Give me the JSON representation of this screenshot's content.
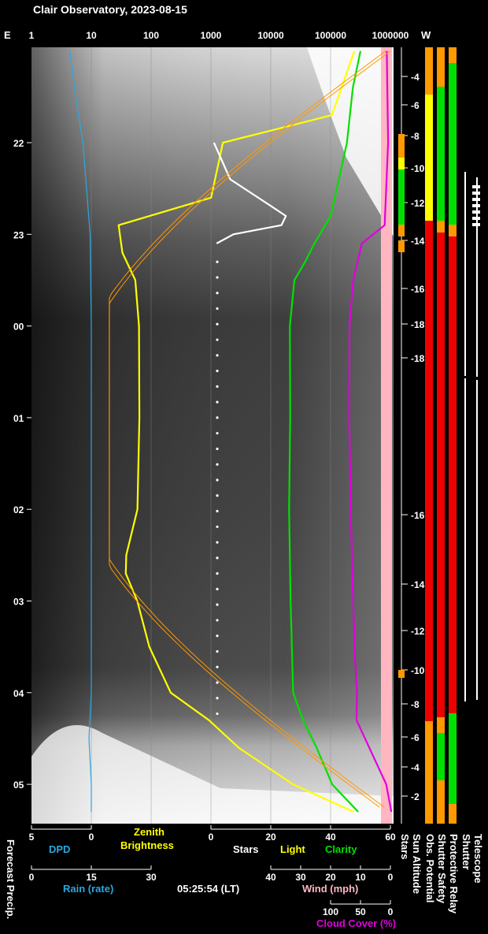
{
  "header": {
    "title": "Clair Observatory, 2023-08-15",
    "east": "E",
    "west": "W",
    "top_scale": [
      "1",
      "10",
      "100",
      "1000",
      "10000",
      "100000",
      "1000000"
    ]
  },
  "chart_data": {
    "type": "line",
    "title": "Clair Observatory, 2023-08-15",
    "time_labels": [
      "22",
      "23",
      "00",
      "01",
      "02",
      "03",
      "04",
      "05"
    ],
    "sun_altitude_labels": [
      "-4",
      "-6",
      "-8",
      "-10",
      "-12",
      "-14",
      "-16",
      "-18",
      "-18",
      "-16",
      "-14",
      "-12",
      "-10",
      "-8",
      "-6",
      "-4",
      "-2"
    ],
    "bottom_axes": {
      "dpd": {
        "label": "DPD",
        "ticks": [
          "5",
          "0"
        ]
      },
      "zenith": {
        "label": "Zenith Brightness",
        "tick": "0"
      },
      "stars_light_clarity": {
        "ticks": [
          "0",
          "20",
          "40",
          "60"
        ]
      },
      "rain": {
        "label": "Rain (rate)",
        "ticks": [
          "0",
          "15",
          "30"
        ]
      },
      "wind": {
        "label": "Wind (mph)",
        "ticks": [
          "40",
          "30",
          "20",
          "10",
          "0"
        ]
      },
      "cloud": {
        "label": "Cloud Cover (%)",
        "ticks": [
          "100",
          "50",
          "0"
        ]
      }
    },
    "series": [
      {
        "name": "Zenith Brightness",
        "color": "#ffff00",
        "x_hours": [
          21.0,
          21.7,
          22.0,
          22.6,
          22.9,
          23.2,
          23.5,
          24.0,
          25.0,
          26.0,
          26.5,
          26.7,
          27.0,
          27.5,
          28.0,
          28.3,
          28.6,
          29.0,
          29.3
        ],
        "y": [
          250000,
          100000,
          1500,
          1000,
          30,
          35,
          55,
          60,
          60,
          58,
          40,
          40,
          60,
          90,
          200,
          900,
          3000,
          25000,
          250000
        ]
      },
      {
        "name": "Clarity",
        "color": "#00e000",
        "x_hours": [
          21.0,
          21.4,
          22.0,
          22.8,
          23.1,
          23.3,
          23.5,
          24.0,
          25.0,
          26.0,
          27.0,
          28.0,
          28.3,
          28.6,
          29.0,
          29.3
        ],
        "y": [
          50,
          47,
          45,
          40,
          35,
          32,
          28,
          26,
          26,
          26,
          27,
          28,
          31,
          35,
          40,
          49
        ]
      },
      {
        "name": "Cloud Cover",
        "color": "#e000e0",
        "x_hours": [
          21.0,
          22.0,
          22.9,
          23.1,
          23.5,
          24.0,
          25.0,
          26.0,
          27.0,
          27.6,
          28.0,
          28.3,
          29.0,
          29.3
        ],
        "y": [
          5,
          5,
          10,
          40,
          50,
          55,
          57,
          57,
          54,
          50,
          45,
          45,
          5,
          0
        ]
      },
      {
        "name": "Stars",
        "color": "#ffffff",
        "x_hours": [
          22.0,
          22.4,
          22.7,
          22.8,
          22.9,
          23.0,
          23.1
        ],
        "y": [
          1,
          6,
          20,
          25,
          24,
          8,
          2
        ]
      },
      {
        "name": "DPD",
        "color": "#29a8e0",
        "x_hours": [
          21.0,
          21.5,
          22.0,
          22.5,
          23.0,
          24.0,
          28.0,
          28.5,
          29.0,
          29.3
        ],
        "y": [
          1.8,
          1.3,
          0.7,
          0.4,
          0.1,
          0.0,
          0.0,
          0.2,
          0.0,
          0.0
        ]
      }
    ],
    "status_bars": {
      "labels": [
        "Forecast Precip.",
        "Stars",
        "Sun Altitude",
        "Obs. Potential",
        "Shutter Safety",
        "Protective Relay",
        "Shutter",
        "Telescope"
      ]
    },
    "colors": {
      "yellow": "#ffff00",
      "green": "#00e000",
      "magenta": "#e000e0",
      "orange": "#ff9900",
      "red": "#ee0000",
      "pink": "#ffb6c1",
      "cyan": "#29a8e0"
    }
  },
  "footer": {
    "time": "05:25:54 (LT)",
    "labels": {
      "forecast_precip": "Forecast Precip.",
      "dpd": "DPD",
      "zenith": "Zenith",
      "brightness": "Brightness",
      "stars": "Stars",
      "light": "Light",
      "clarity": "Clarity",
      "rain": "Rain (rate)",
      "wind": "Wind (mph)",
      "cloud": "Cloud Cover (%)",
      "stars_v": "Stars",
      "sun_altitude": "Sun Altitude",
      "obs_potential": "Obs. Potential",
      "shutter_safety": "Shutter Safety",
      "protective_relay": "Protective Relay",
      "shutter": "Shutter",
      "telescope": "Telescope"
    }
  }
}
